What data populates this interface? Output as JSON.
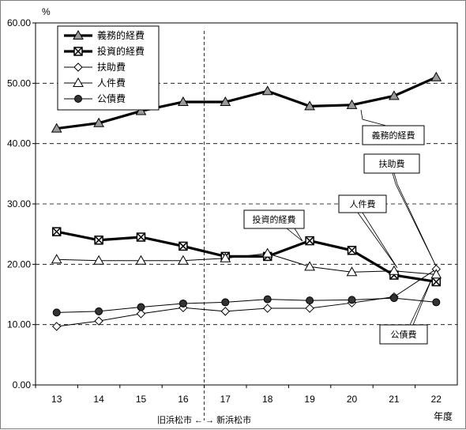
{
  "chart_data": {
    "type": "line",
    "ylabel_unit": "%",
    "xlabel": "年度",
    "categories": [
      "13",
      "14",
      "15",
      "16",
      "17",
      "18",
      "19",
      "20",
      "21",
      "22"
    ],
    "y_ticks": [
      "0.00",
      "10.00",
      "20.00",
      "30.00",
      "40.00",
      "50.00",
      "60.00"
    ],
    "ylim": [
      0,
      60
    ],
    "grid": "horizontal dashed",
    "legend_position": "top-left",
    "divider_after_category": "16",
    "divider_caption": "旧浜松市 ←  → 新浜松市",
    "colors": {
      "line": "#000000",
      "marker_fill": "#9a9a9a",
      "grid": "#000000"
    },
    "series": [
      {
        "name": "義務的経費",
        "marker": "triangle-filled",
        "bold": true,
        "values": [
          42.5,
          43.4,
          45.4,
          46.9,
          46.9,
          48.7,
          46.2,
          46.4,
          47.9,
          51.0
        ]
      },
      {
        "name": "投資的経費",
        "marker": "square-x",
        "bold": true,
        "values": [
          25.4,
          24.0,
          24.5,
          23.0,
          21.3,
          21.3,
          23.9,
          22.3,
          18.2,
          17.1
        ]
      },
      {
        "name": "扶助費",
        "marker": "diamond-open",
        "bold": false,
        "values": [
          9.7,
          10.6,
          11.8,
          12.8,
          12.2,
          12.7,
          12.7,
          13.6,
          14.6,
          19.2
        ]
      },
      {
        "name": "人件費",
        "marker": "triangle-open",
        "bold": false,
        "values": [
          20.8,
          20.6,
          20.6,
          20.6,
          21.0,
          21.8,
          19.6,
          18.7,
          18.9,
          18.3
        ]
      },
      {
        "name": "公債費",
        "marker": "circle-filled",
        "bold": false,
        "values": [
          12.0,
          12.2,
          12.9,
          13.5,
          13.7,
          14.2,
          14.0,
          14.1,
          14.4,
          13.7
        ]
      }
    ],
    "annotations": [
      "義務的経費",
      "扶助費",
      "人件費",
      "投資的経費",
      "公債費"
    ]
  }
}
